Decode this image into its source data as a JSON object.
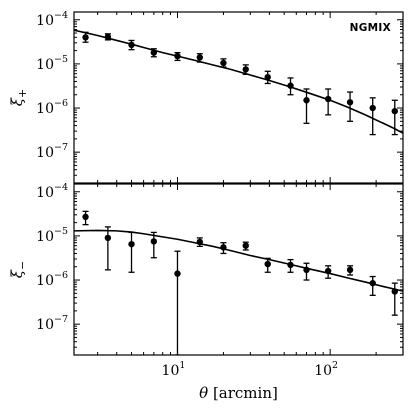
{
  "chart_data": [
    {
      "type": "scatter",
      "panel": "xi_plus",
      "ylabel": "ξ+",
      "annotation": "NGMIX",
      "xscale": "log",
      "yscale": "log",
      "xlim": [
        2.1,
        300
      ],
      "ylim": [
        2e-08,
        0.00015
      ],
      "yticks": [
        {
          "value": 1e-07,
          "base": "10",
          "exp": "−7"
        },
        {
          "value": 1e-06,
          "base": "10",
          "exp": "−6"
        },
        {
          "value": 1e-05,
          "base": "10",
          "exp": "−5"
        },
        {
          "value": 0.0001,
          "base": "10",
          "exp": "−4"
        }
      ],
      "series": [
        {
          "kind": "measurements",
          "x": [
            2.5,
            3.5,
            5.0,
            7.0,
            10.0,
            14.0,
            20.0,
            28.0,
            39.0,
            55.0,
            70.0,
            97.0,
            135.0,
            190.0,
            265.0
          ],
          "y": [
            4e-05,
            4.1e-05,
            2.7e-05,
            1.8e-05,
            1.5e-05,
            1.4e-05,
            1.05e-05,
            7.5e-06,
            5e-06,
            3.2e-06,
            1.5e-06,
            1.6e-06,
            1.35e-06,
            1e-06,
            8.5e-07
          ],
          "y_low": [
            3.1e-05,
            3.5e-05,
            2.1e-05,
            1.45e-05,
            1.2e-05,
            1.1e-05,
            8.5e-06,
            5.8e-06,
            3.6e-06,
            2e-06,
            4.5e-07,
            7e-07,
            5e-07,
            2.5e-07,
            2.5e-07
          ],
          "y_high": [
            5.2e-05,
            4.8e-05,
            3.4e-05,
            2.2e-05,
            1.8e-05,
            1.7e-05,
            1.3e-05,
            9.5e-06,
            6.8e-06,
            4.8e-06,
            2.7e-06,
            2.7e-06,
            2.3e-06,
            1.7e-06,
            1.5e-06
          ]
        },
        {
          "kind": "model",
          "x": [
            2.1,
            3,
            4,
            5,
            6,
            8,
            10,
            13,
            17,
            22,
            30,
            40,
            55,
            75,
            100,
            130,
            170,
            220,
            260,
            300
          ],
          "y": [
            5.8e-05,
            4.4e-05,
            3.4e-05,
            2.8e-05,
            2.35e-05,
            1.8e-05,
            1.5e-05,
            1.2e-05,
            9.5e-06,
            7.6e-06,
            5.6e-06,
            4.2e-06,
            3e-06,
            2.1e-06,
            1.5e-06,
            1.05e-06,
            7e-07,
            4.6e-07,
            3.5e-07,
            2.7e-07
          ]
        }
      ]
    },
    {
      "type": "scatter",
      "panel": "xi_minus",
      "ylabel": "ξ−",
      "xlabel": "θ [arcmin]",
      "xscale": "log",
      "yscale": "log",
      "xlim": [
        2.1,
        300
      ],
      "ylim": [
        2e-08,
        0.00015
      ],
      "xticks": [
        {
          "value": 10,
          "base": "10",
          "exp": "1"
        },
        {
          "value": 100,
          "base": "10",
          "exp": "2"
        }
      ],
      "yticks": [
        {
          "value": 1e-07,
          "base": "10",
          "exp": "−7"
        },
        {
          "value": 1e-06,
          "base": "10",
          "exp": "−6"
        },
        {
          "value": 1e-05,
          "base": "10",
          "exp": "−5"
        },
        {
          "value": 0.0001,
          "base": "10",
          "exp": "−4"
        }
      ],
      "series": [
        {
          "kind": "measurements",
          "x": [
            2.5,
            3.5,
            5.0,
            7.0,
            10.0,
            14.0,
            20.0,
            28.0,
            39.0,
            55.0,
            70.0,
            97.0,
            135.0,
            190.0,
            265.0
          ],
          "y": [
            2.7e-05,
            9e-06,
            6.5e-06,
            7.5e-06,
            1.4e-06,
            7.3e-06,
            5.5e-06,
            6e-06,
            2.3e-06,
            2.2e-06,
            1.7e-06,
            1.6e-06,
            1.7e-06,
            8.5e-07,
            5.5e-07
          ],
          "y_low": [
            1.8e-05,
            1.7e-06,
            1.5e-06,
            3.2e-06,
            2e-08,
            5.8e-06,
            4e-06,
            4.8e-06,
            1.5e-06,
            1.5e-06,
            1e-06,
            1.1e-06,
            1.3e-06,
            4.5e-07,
            1.6e-07
          ],
          "y_high": [
            3.6e-05,
            1.6e-05,
            1.2e-05,
            1.2e-05,
            4.5e-06,
            9e-06,
            7e-06,
            7.2e-06,
            3.1e-06,
            2.9e-06,
            2.4e-06,
            2.1e-06,
            2.1e-06,
            1.2e-06,
            8.5e-07
          ]
        },
        {
          "kind": "model",
          "x": [
            2.1,
            3,
            4,
            5,
            6,
            8,
            10,
            13,
            17,
            22,
            30,
            40,
            55,
            75,
            100,
            130,
            170,
            220,
            260,
            300
          ],
          "y": [
            1.3e-05,
            1.33e-05,
            1.3e-05,
            1.22e-05,
            1.12e-05,
            9.5e-06,
            8.4e-06,
            7e-06,
            5.8e-06,
            4.7e-06,
            3.6e-06,
            2.9e-06,
            2.25e-06,
            1.75e-06,
            1.4e-06,
            1.12e-06,
            9e-07,
            7.2e-07,
            6.3e-07,
            5.6e-07
          ]
        }
      ]
    }
  ]
}
